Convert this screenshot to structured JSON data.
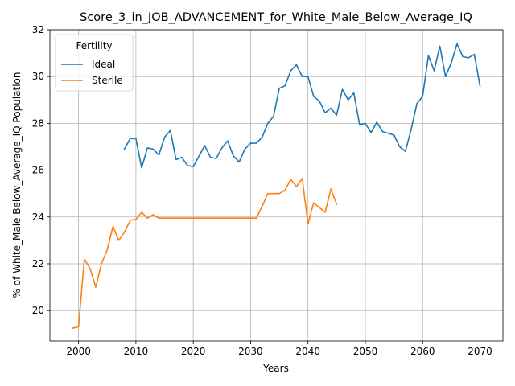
{
  "chart_data": {
    "type": "line",
    "title": "Score_3_in_JOB_ADVANCEMENT_for_White_Male_Below_Average_IQ",
    "xlabel": "Years",
    "ylabel": "% of White_Male Below_Average_IQ Population",
    "xlim": [
      1995,
      2074
    ],
    "ylim": [
      18.7,
      32
    ],
    "x_ticks": [
      2000,
      2010,
      2020,
      2030,
      2040,
      2050,
      2060,
      2070
    ],
    "y_ticks": [
      20,
      22,
      24,
      26,
      28,
      30,
      32
    ],
    "grid": true,
    "legend": {
      "title": "Fertility",
      "placement": "top-left"
    },
    "series": [
      {
        "name": "Ideal",
        "color": "#1f77b4",
        "x": [
          2008,
          2009,
          2010,
          2011,
          2012,
          2013,
          2014,
          2015,
          2016,
          2017,
          2018,
          2019,
          2020,
          2021,
          2022,
          2023,
          2024,
          2025,
          2026,
          2027,
          2028,
          2029,
          2030,
          2031,
          2032,
          2033,
          2034,
          2035,
          2036,
          2037,
          2038,
          2039,
          2040,
          2041,
          2042,
          2043,
          2044,
          2045,
          2046,
          2047,
          2048,
          2049,
          2050,
          2051,
          2052,
          2053,
          2055,
          2056,
          2057,
          2058,
          2059,
          2060,
          2061,
          2062,
          2063,
          2064,
          2065,
          2066,
          2067,
          2068,
          2069,
          2070
        ],
        "y": [
          26.9,
          27.35,
          27.35,
          26.1,
          26.95,
          26.9,
          26.65,
          27.4,
          27.7,
          26.45,
          26.55,
          26.2,
          26.15,
          26.6,
          27.05,
          26.55,
          26.5,
          26.95,
          27.25,
          26.6,
          26.35,
          26.9,
          27.15,
          27.15,
          27.4,
          28.0,
          28.3,
          29.5,
          29.6,
          30.25,
          30.5,
          30.0,
          30.0,
          29.15,
          28.95,
          28.45,
          28.65,
          28.35,
          29.45,
          29.0,
          29.3,
          27.95,
          28.0,
          27.6,
          28.05,
          27.65,
          27.5,
          27.0,
          26.8,
          27.75,
          28.85,
          29.15,
          30.9,
          30.25,
          31.3,
          30.0,
          30.6,
          31.4,
          30.85,
          30.8,
          30.95,
          29.6
        ]
      },
      {
        "name": "Sterile",
        "color": "#ff7f0e",
        "x": [
          1999,
          2000,
          2001,
          2002,
          2003,
          2004,
          2005,
          2006,
          2007,
          2008,
          2009,
          2010,
          2011,
          2012,
          2013,
          2014,
          2015,
          2016,
          2017,
          2018,
          2019,
          2020,
          2021,
          2022,
          2023,
          2024,
          2025,
          2026,
          2027,
          2028,
          2029,
          2030,
          2031,
          2032,
          2033,
          2034,
          2035,
          2036,
          2037,
          2038,
          2039,
          2040,
          2041,
          2042,
          2043,
          2044,
          2045
        ],
        "y": [
          19.25,
          19.3,
          22.2,
          21.8,
          21.0,
          22.0,
          22.6,
          23.6,
          23.0,
          23.35,
          23.85,
          23.9,
          24.2,
          23.95,
          24.1,
          23.95,
          23.95,
          23.95,
          23.95,
          23.95,
          23.95,
          23.95,
          23.95,
          23.95,
          23.95,
          23.95,
          23.95,
          23.95,
          23.95,
          23.95,
          23.95,
          23.95,
          23.95,
          24.45,
          25.0,
          25.0,
          25.0,
          25.15,
          25.6,
          25.3,
          25.65,
          23.7,
          24.6,
          24.4,
          24.2,
          25.2,
          24.55
        ]
      }
    ]
  }
}
